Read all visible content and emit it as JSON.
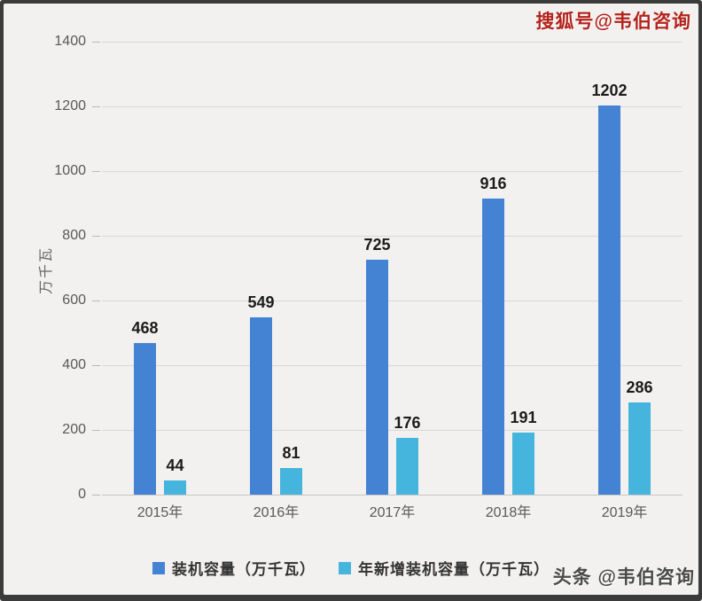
{
  "watermarks": {
    "top_right": "搜狐号@韦伯咨询",
    "bottom_right": "头条 @韦伯咨询"
  },
  "chart_data": {
    "type": "bar",
    "title": "",
    "categories": [
      "2015年",
      "2016年",
      "2017年",
      "2018年",
      "2019年"
    ],
    "series": [
      {
        "name": "装机容量（万千瓦）",
        "color": "#4483d3",
        "values": [
          468,
          549,
          725,
          916,
          1202
        ]
      },
      {
        "name": "年新增装机容量（万千瓦）",
        "color": "#46b5dd",
        "values": [
          44,
          81,
          176,
          191,
          286
        ]
      }
    ],
    "xlabel": "",
    "ylabel": "万千瓦",
    "ylim": [
      0,
      1400
    ],
    "ytick_step": 200,
    "grid": true,
    "legend_position": "bottom",
    "value_labels": true
  },
  "colors": {
    "background": "#f2f1ef",
    "frame": "#3b3b3b",
    "gridline": "#d8d8d8",
    "axis_text": "#595959",
    "watermark_top": "#b3231c",
    "watermark_bottom": "#4a4a4a"
  }
}
